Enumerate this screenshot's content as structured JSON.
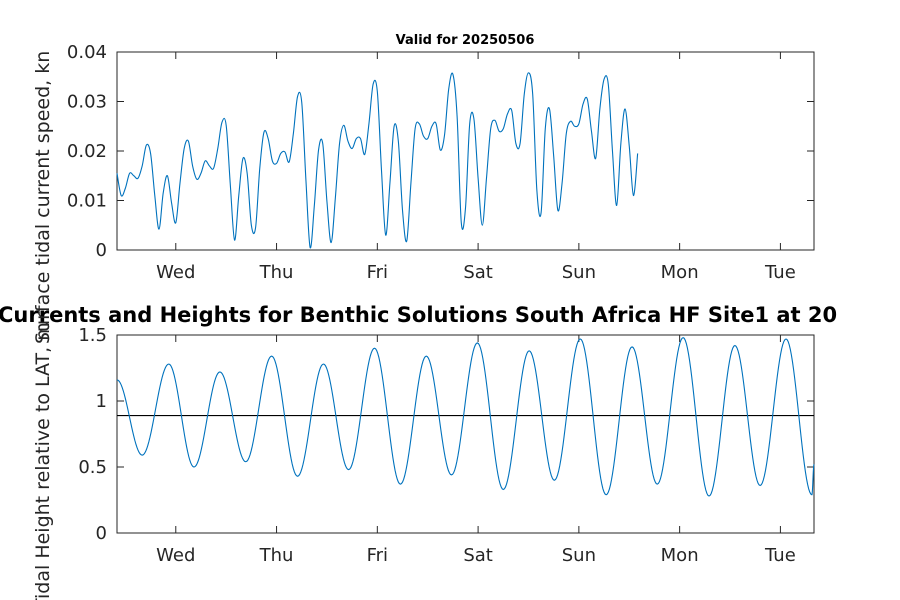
{
  "figure": {
    "title": "Currents and Heights for Benthic Solutions South Africa HF Site1 at 20"
  },
  "chart_data": [
    {
      "type": "line",
      "title": "Valid for 20250506",
      "xlabel": "",
      "ylabel": "Surface tidal current speed, kn",
      "xlim": [
        "2025-05-06T10:00",
        "2025-05-13T08:00"
      ],
      "ylim": [
        0,
        0.04
      ],
      "yticks": [
        0,
        0.01,
        0.02,
        0.03,
        0.04
      ],
      "ytick_labels": [
        "0",
        "0.01",
        "0.02",
        "0.03",
        "0.04"
      ],
      "xticks": [
        "2025-05-07T00:00",
        "2025-05-08T00:00",
        "2025-05-09T00:00",
        "2025-05-10T00:00",
        "2025-05-11T00:00",
        "2025-05-12T00:00",
        "2025-05-13T00:00"
      ],
      "xtick_labels": [
        "Wed",
        "Thu",
        "Fri",
        "Sat",
        "Sun",
        "Mon",
        "Tue"
      ],
      "grid": false,
      "color": "#0072bd",
      "series": [
        {
          "values_by_hour_from_xlim_start": [
            0.0155,
            0.011,
            0.0125,
            0.0155,
            0.015,
            0.0145,
            0.017,
            0.0212,
            0.0195,
            0.011,
            0.0042,
            0.0115,
            0.015,
            0.0095,
            0.0055,
            0.0135,
            0.0205,
            0.022,
            0.017,
            0.0143,
            0.0155,
            0.018,
            0.017,
            0.0165,
            0.0205,
            0.0258,
            0.0252,
            0.013,
            0.002,
            0.011,
            0.0185,
            0.0155,
            0.005,
            0.0045,
            0.0165,
            0.0238,
            0.0225,
            0.018,
            0.0175,
            0.0195,
            0.0198,
            0.0178,
            0.0235,
            0.031,
            0.0298,
            0.014,
            0.0005,
            0.009,
            0.0202,
            0.0215,
            0.0098,
            0.0015,
            0.0105,
            0.0215,
            0.0252,
            0.022,
            0.0205,
            0.0225,
            0.0225,
            0.0193,
            0.0255,
            0.0335,
            0.032,
            0.016,
            0.003,
            0.0135,
            0.025,
            0.022,
            0.008,
            0.0018,
            0.0135,
            0.0245,
            0.0255,
            0.023,
            0.0225,
            0.025,
            0.0255,
            0.0202,
            0.0232,
            0.0325,
            0.0355,
            0.027,
            0.0055,
            0.0085,
            0.0255,
            0.0265,
            0.0145,
            0.005,
            0.0145,
            0.0245,
            0.0262,
            0.024,
            0.0245,
            0.0275,
            0.0282,
            0.0215,
            0.0215,
            0.0315,
            0.0358,
            0.0315,
            0.012,
            0.0075,
            0.0245,
            0.0285,
            0.019,
            0.008,
            0.0135,
            0.0235,
            0.026,
            0.025,
            0.0255,
            0.0295,
            0.0305,
            0.024,
            0.0185,
            0.0285,
            0.0345,
            0.0335,
            0.02,
            0.009,
            0.0215,
            0.0285,
            0.021,
            0.011,
            0.0195
          ]
        }
      ]
    },
    {
      "type": "line",
      "title": "",
      "xlabel": "",
      "ylabel": "Tidal Height relative to LAT, m",
      "xlim": [
        "2025-05-06T10:00",
        "2025-05-13T08:00"
      ],
      "ylim": [
        0,
        1.5
      ],
      "yticks": [
        0,
        0.5,
        1,
        1.5
      ],
      "ytick_labels": [
        "0",
        "0.5",
        "1",
        "1.5"
      ],
      "xticks": [
        "2025-05-07T00:00",
        "2025-05-08T00:00",
        "2025-05-09T00:00",
        "2025-05-10T00:00",
        "2025-05-11T00:00",
        "2025-05-12T00:00",
        "2025-05-13T00:00"
      ],
      "xtick_labels": [
        "Wed",
        "Thu",
        "Fri",
        "Sat",
        "Sun",
        "Mon",
        "Tue"
      ],
      "grid": false,
      "color": "#0072bd",
      "reference_line": {
        "y": 0.89,
        "color": "#000000"
      },
      "series": [
        {
          "extrema": [
            {
              "t": "2025-05-06T10:00",
              "v": 1.16
            },
            {
              "t": "2025-05-06T16:00",
              "v": 0.59
            },
            {
              "t": "2025-05-06T22:20",
              "v": 1.28
            },
            {
              "t": "2025-05-07T04:20",
              "v": 0.5
            },
            {
              "t": "2025-05-07T10:30",
              "v": 1.22
            },
            {
              "t": "2025-05-07T16:40",
              "v": 0.54
            },
            {
              "t": "2025-05-07T22:50",
              "v": 1.34
            },
            {
              "t": "2025-05-08T05:00",
              "v": 0.43
            },
            {
              "t": "2025-05-08T11:10",
              "v": 1.28
            },
            {
              "t": "2025-05-08T17:10",
              "v": 0.48
            },
            {
              "t": "2025-05-08T23:20",
              "v": 1.4
            },
            {
              "t": "2025-05-09T05:30",
              "v": 0.37
            },
            {
              "t": "2025-05-09T11:40",
              "v": 1.34
            },
            {
              "t": "2025-05-09T17:40",
              "v": 0.44
            },
            {
              "t": "2025-05-09T23:50",
              "v": 1.44
            },
            {
              "t": "2025-05-10T06:00",
              "v": 0.33
            },
            {
              "t": "2025-05-10T12:10",
              "v": 1.38
            },
            {
              "t": "2025-05-10T18:10",
              "v": 0.4
            },
            {
              "t": "2025-05-11T00:20",
              "v": 1.47
            },
            {
              "t": "2025-05-11T06:30",
              "v": 0.29
            },
            {
              "t": "2025-05-11T12:40",
              "v": 1.41
            },
            {
              "t": "2025-05-11T18:40",
              "v": 0.37
            },
            {
              "t": "2025-05-12T00:50",
              "v": 1.48
            },
            {
              "t": "2025-05-12T07:00",
              "v": 0.28
            },
            {
              "t": "2025-05-12T13:10",
              "v": 1.42
            },
            {
              "t": "2025-05-12T19:10",
              "v": 0.36
            },
            {
              "t": "2025-05-13T01:20",
              "v": 1.47
            },
            {
              "t": "2025-05-13T07:30",
              "v": 0.29
            },
            {
              "t": "2025-05-13T08:00",
              "v": 0.52
            }
          ]
        }
      ]
    }
  ]
}
